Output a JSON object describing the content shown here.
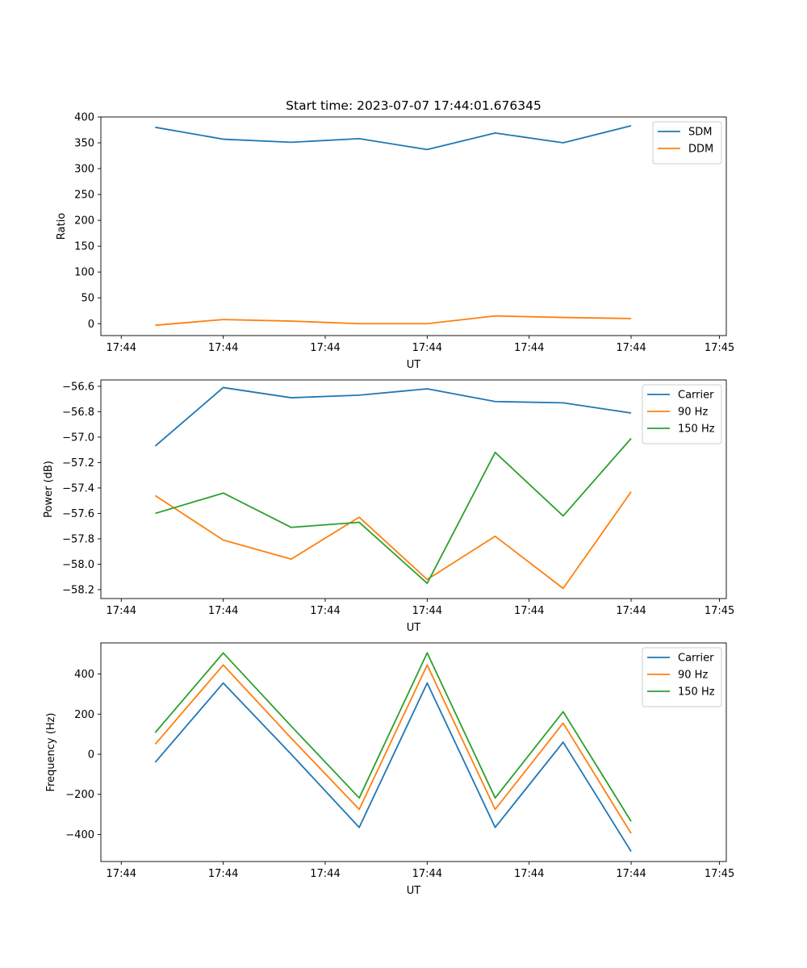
{
  "figure_title": "Start time: 2023-07-07 17:44:01.676345",
  "colors": {
    "blue": "#1f77b4",
    "orange": "#ff7f0e",
    "green": "#2ca02c"
  },
  "chart_data": [
    {
      "type": "line",
      "title": "Start time: 2023-07-07 17:44:01.676345",
      "xlabel": "UT",
      "ylabel": "Ratio",
      "x": [
        1,
        2,
        3,
        4,
        5,
        6,
        7,
        8
      ],
      "xlim": [
        0.2,
        9.4
      ],
      "xticks": [
        0.5,
        2,
        3.5,
        5,
        6.5,
        8,
        9.3
      ],
      "xtick_labels": [
        "17:44",
        "17:44",
        "17:44",
        "17:44",
        "17:44",
        "17:44",
        "17:45"
      ],
      "ylim": [
        -23,
        400
      ],
      "yticks": [
        0,
        50,
        100,
        150,
        200,
        250,
        300,
        350,
        400
      ],
      "ytick_labels": [
        "0",
        "50",
        "100",
        "150",
        "200",
        "250",
        "300",
        "350",
        "400"
      ],
      "legend_position": "top-right",
      "series": [
        {
          "name": "SDM",
          "color": "blue",
          "values": [
            380,
            357,
            351,
            358,
            337,
            369,
            350,
            383
          ]
        },
        {
          "name": "DDM",
          "color": "orange",
          "values": [
            -3,
            8,
            5,
            0,
            0,
            15,
            12,
            10
          ]
        }
      ]
    },
    {
      "type": "line",
      "title": "",
      "xlabel": "UT",
      "ylabel": "Power (dB)",
      "x": [
        1,
        2,
        3,
        4,
        5,
        6,
        7,
        8
      ],
      "xlim": [
        0.2,
        9.4
      ],
      "xticks": [
        0.5,
        2,
        3.5,
        5,
        6.5,
        8,
        9.3
      ],
      "xtick_labels": [
        "17:44",
        "17:44",
        "17:44",
        "17:44",
        "17:44",
        "17:44",
        "17:45"
      ],
      "ylim": [
        -58.27,
        -56.55
      ],
      "yticks": [
        -56.6,
        -56.8,
        -57.0,
        -57.2,
        -57.4,
        -57.6,
        -57.8,
        -58.0,
        -58.2
      ],
      "ytick_labels": [
        "−56.6",
        "−56.8",
        "−57.0",
        "−57.2",
        "−57.4",
        "−57.6",
        "−57.8",
        "−58.0",
        "−58.2"
      ],
      "legend_position": "top-right",
      "series": [
        {
          "name": "Carrier",
          "color": "blue",
          "values": [
            -57.07,
            -56.61,
            -56.69,
            -56.67,
            -56.62,
            -56.72,
            -56.73,
            -56.81
          ]
        },
        {
          "name": "90 Hz",
          "color": "orange",
          "values": [
            -57.46,
            -57.81,
            -57.96,
            -57.63,
            -58.12,
            -57.78,
            -58.19,
            -57.43
          ]
        },
        {
          "name": "150 Hz",
          "color": "green",
          "values": [
            -57.6,
            -57.44,
            -57.71,
            -57.67,
            -58.15,
            -57.12,
            -57.62,
            -57.01
          ]
        }
      ]
    },
    {
      "type": "line",
      "title": "",
      "xlabel": "UT",
      "ylabel": "Frequency (Hz)",
      "x": [
        1,
        2,
        3,
        4,
        5,
        6,
        7,
        8
      ],
      "xlim": [
        0.2,
        9.4
      ],
      "xticks": [
        0.5,
        2,
        3.5,
        5,
        6.5,
        8,
        9.3
      ],
      "xtick_labels": [
        "17:44",
        "17:44",
        "17:44",
        "17:44",
        "17:44",
        "17:44",
        "17:45"
      ],
      "ylim": [
        -535,
        555
      ],
      "yticks": [
        400,
        200,
        0,
        -200,
        -400
      ],
      "ytick_labels": [
        "400",
        "200",
        "0",
        "−200",
        "−400"
      ],
      "legend_position": "top-right",
      "series": [
        {
          "name": "Carrier",
          "color": "blue",
          "values": [
            -40,
            355,
            0,
            -365,
            355,
            -365,
            60,
            -485
          ]
        },
        {
          "name": "90 Hz",
          "color": "orange",
          "values": [
            50,
            445,
            80,
            -275,
            445,
            -275,
            155,
            -395
          ]
        },
        {
          "name": "150 Hz",
          "color": "green",
          "values": [
            108,
            505,
            140,
            -218,
            505,
            -218,
            212,
            -335
          ]
        }
      ]
    }
  ]
}
